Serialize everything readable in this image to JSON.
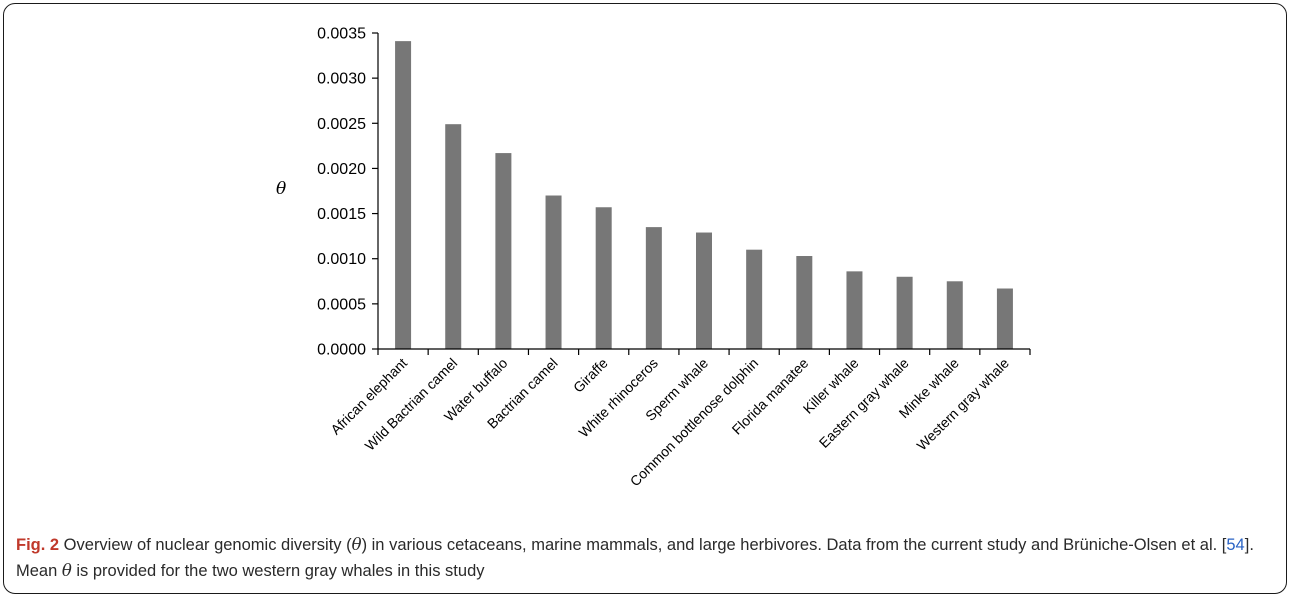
{
  "chart_data": {
    "type": "bar",
    "ylabel": "θ",
    "ylim": [
      0,
      0.0035
    ],
    "yticks": [
      "0.0000",
      "0.0005",
      "0.0010",
      "0.0015",
      "0.0020",
      "0.0025",
      "0.0030",
      "0.0035"
    ],
    "categories": [
      "African elephant",
      "Wild Bactrian camel",
      "Water buffalo",
      "Bactrian camel",
      "Giraffe",
      "White rhinoceros",
      "Sperm whale",
      "Common bottlenose dolphin",
      "Florida manatee",
      "Killer whale",
      "Eastern gray whale",
      "Minke whale",
      "Western gray whale"
    ],
    "values": [
      0.00341,
      0.00249,
      0.00217,
      0.0017,
      0.00157,
      0.00135,
      0.00129,
      0.0011,
      0.00103,
      0.00086,
      0.0008,
      0.00075,
      0.00067
    ],
    "bar_color": "#777777",
    "grid": false,
    "legend": "none"
  },
  "caption": {
    "label": "Fig. 2",
    "part1": " Overview of nuclear genomic diversity (",
    "theta1": "θ",
    "part2": ") in various cetaceans, marine mammals, and large herbivores. Data from the current study and Brüniche-Olsen et al. [",
    "ref": "54",
    "part3": "]. Mean ",
    "theta2": "θ",
    "part4": " is provided for the two western gray whales in this study"
  }
}
